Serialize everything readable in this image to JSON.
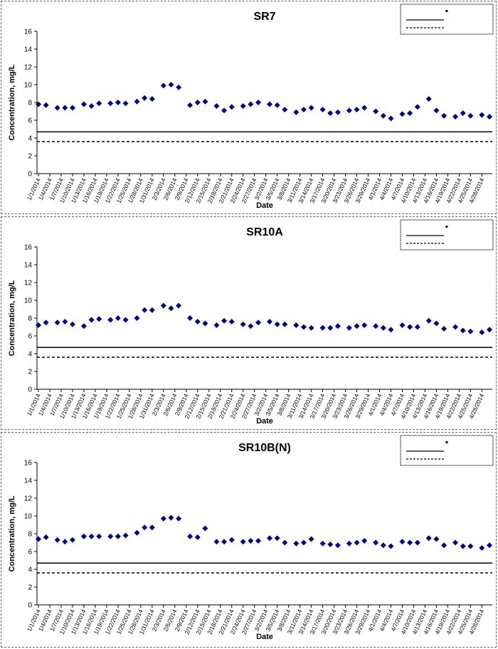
{
  "x_dates": [
    "1/1/2014",
    "1/4/2014",
    "1/7/2014",
    "1/10/2014",
    "1/13/2014",
    "1/16/2014",
    "1/19/2014",
    "1/22/2014",
    "1/25/2014",
    "1/28/2014",
    "1/31/2014",
    "2/3/2014",
    "2/6/2014",
    "2/9/2014",
    "2/12/2014",
    "2/15/2014",
    "2/18/2014",
    "2/21/2014",
    "2/24/2014",
    "2/27/2014",
    "3/2/2014",
    "3/5/2014",
    "3/8/2014",
    "3/11/2014",
    "3/14/2014",
    "3/17/2014",
    "3/20/2014",
    "3/23/2014",
    "3/26/2014",
    "3/29/2014",
    "4/1/2014",
    "4/4/2014",
    "4/7/2014",
    "4/10/2014",
    "4/13/2014",
    "4/16/2014",
    "4/19/2014",
    "4/22/2014",
    "4/25/2014",
    "4/28/2014"
  ],
  "colors": {
    "marker": "#00008b",
    "line": "#000000",
    "frame": "#666666"
  },
  "chart_data": [
    {
      "type": "scatter",
      "title": "SR7",
      "xlabel": "Date",
      "ylabel": "Concentration, mg/L",
      "ylim": [
        0,
        16
      ],
      "yticks": [
        0,
        2,
        4,
        6,
        8,
        10,
        12,
        14,
        16
      ],
      "grid": false,
      "legend_position": "top-right",
      "xtick_labels": [
        "1/1/2014",
        "1/4/2014",
        "1/7/2014",
        "1/10/2014",
        "1/13/2014",
        "1/16/2014",
        "1/19/2014",
        "1/22/2014",
        "1/25/2014",
        "1/28/2014",
        "1/31/2014",
        "2/3/2014",
        "2/6/2014",
        "2/9/2014",
        "2/12/2014",
        "2/15/2014",
        "2/18/2014",
        "2/21/2014",
        "2/24/2014",
        "2/27/2014",
        "3/2/2014",
        "3/5/2014",
        "3/8/2014",
        "3/11/2014",
        "3/14/2014",
        "3/17/2014",
        "3/20/2014",
        "3/23/2014",
        "3/26/2014",
        "3/29/2014",
        "4/1/2014",
        "4/4/2014",
        "4/7/2014",
        "4/10/2014",
        "4/13/2014",
        "4/16/2014",
        "4/19/2014",
        "4/22/2014",
        "4/25/2014",
        "4/28/2014"
      ],
      "series": [
        {
          "x": [
            "1/1/2014",
            "1/3/2014",
            "1/6/2014",
            "1/8/2014",
            "1/10/2014",
            "1/13/2014",
            "1/15/2014",
            "1/17/2014",
            "1/20/2014",
            "1/22/2014",
            "1/24/2014",
            "1/27/2014",
            "1/29/2014",
            "1/31/2014",
            "2/3/2014",
            "2/5/2014",
            "2/7/2014",
            "2/10/2014",
            "2/12/2014",
            "2/14/2014",
            "2/17/2014",
            "2/19/2014",
            "2/21/2014",
            "2/24/2014",
            "2/26/2014",
            "2/28/2014",
            "3/3/2014",
            "3/5/2014",
            "3/7/2014",
            "3/10/2014",
            "3/12/2014",
            "3/14/2014",
            "3/17/2014",
            "3/19/2014",
            "3/21/2014",
            "3/24/2014",
            "3/26/2014",
            "3/28/2014",
            "3/31/2014",
            "4/2/2014",
            "4/4/2014",
            "4/7/2014",
            "4/9/2014",
            "4/11/2014",
            "4/14/2014",
            "4/16/2014",
            "4/18/2014",
            "4/21/2014",
            "4/23/2014",
            "4/25/2014",
            "4/28/2014",
            "4/30/2014"
          ],
          "y": [
            7.8,
            7.7,
            7.4,
            7.4,
            7.4,
            7.8,
            7.6,
            7.9,
            7.9,
            8.0,
            7.9,
            8.1,
            8.5,
            8.4,
            9.9,
            10.0,
            9.7,
            7.7,
            8.0,
            8.1,
            7.6,
            7.1,
            7.5,
            7.6,
            7.8,
            8.0,
            7.8,
            7.7,
            7.2,
            6.9,
            7.2,
            7.4,
            7.2,
            6.8,
            6.9,
            7.1,
            7.2,
            7.4,
            7.0,
            6.5,
            6.2,
            6.7,
            6.8,
            7.5,
            8.4,
            7.1,
            6.5,
            6.4,
            6.8,
            6.5,
            6.6,
            6.4
          ]
        },
        {
          "type": "line",
          "y": 4.7
        },
        {
          "type": "line",
          "y": 3.6
        }
      ]
    },
    {
      "type": "scatter",
      "title": "SR10A",
      "xlabel": "Date",
      "ylabel": "Concentration, mg/L",
      "ylim": [
        0,
        16
      ],
      "yticks": [
        0,
        2,
        4,
        6,
        8,
        10,
        12,
        14,
        16
      ],
      "grid": false,
      "legend_position": "top-right",
      "xtick_labels": [
        "1/1/2014",
        "1/4/2014",
        "1/7/2014",
        "1/10/2014",
        "1/13/2014",
        "1/16/2014",
        "1/19/2014",
        "1/22/2014",
        "1/25/2014",
        "1/28/2014",
        "1/31/2014",
        "2/3/2014",
        "2/6/2014",
        "2/9/2014",
        "2/12/2014",
        "2/15/2014",
        "2/18/2014",
        "2/21/2014",
        "2/24/2014",
        "2/27/2014",
        "3/2/2014",
        "3/5/2014",
        "3/8/2014",
        "3/11/2014",
        "3/14/2014",
        "3/17/2014",
        "3/20/2014",
        "3/23/2014",
        "3/26/2014",
        "3/29/2014",
        "4/1/2014",
        "4/4/2014",
        "4/7/2014",
        "4/10/2014",
        "4/13/2014",
        "4/16/2014",
        "4/19/2014",
        "4/22/2014",
        "4/25/2014",
        "4/28/2014"
      ],
      "series": [
        {
          "x": [
            "1/1/2014",
            "1/3/2014",
            "1/6/2014",
            "1/8/2014",
            "1/10/2014",
            "1/13/2014",
            "1/15/2014",
            "1/17/2014",
            "1/20/2014",
            "1/22/2014",
            "1/24/2014",
            "1/27/2014",
            "1/29/2014",
            "1/31/2014",
            "2/3/2014",
            "2/5/2014",
            "2/7/2014",
            "2/10/2014",
            "2/12/2014",
            "2/14/2014",
            "2/17/2014",
            "2/19/2014",
            "2/21/2014",
            "2/24/2014",
            "2/26/2014",
            "2/28/2014",
            "3/3/2014",
            "3/5/2014",
            "3/7/2014",
            "3/10/2014",
            "3/12/2014",
            "3/14/2014",
            "3/17/2014",
            "3/19/2014",
            "3/21/2014",
            "3/24/2014",
            "3/26/2014",
            "3/28/2014",
            "3/31/2014",
            "4/2/2014",
            "4/4/2014",
            "4/7/2014",
            "4/9/2014",
            "4/11/2014",
            "4/14/2014",
            "4/16/2014",
            "4/18/2014",
            "4/21/2014",
            "4/23/2014",
            "4/25/2014",
            "4/28/2014",
            "4/30/2014"
          ],
          "y": [
            7.2,
            7.5,
            7.5,
            7.6,
            7.3,
            7.1,
            7.8,
            7.9,
            7.8,
            8.0,
            7.8,
            8.0,
            8.9,
            8.9,
            9.4,
            9.1,
            9.4,
            8.0,
            7.6,
            7.4,
            7.2,
            7.7,
            7.6,
            7.3,
            7.1,
            7.5,
            7.6,
            7.3,
            7.3,
            7.2,
            7.0,
            6.9,
            6.9,
            6.9,
            7.1,
            6.9,
            7.1,
            7.2,
            7.1,
            6.9,
            6.7,
            7.2,
            7.0,
            7.0,
            7.7,
            7.4,
            6.8,
            7.0,
            6.6,
            6.5,
            6.4,
            6.7
          ]
        },
        {
          "type": "line",
          "y": 4.7
        },
        {
          "type": "line",
          "y": 3.6
        }
      ]
    },
    {
      "type": "scatter",
      "title": "SR10B(N)",
      "xlabel": "Date",
      "ylabel": "Concentration, mg/L",
      "ylim": [
        0,
        16
      ],
      "yticks": [
        0,
        2,
        4,
        6,
        8,
        10,
        12,
        14,
        16
      ],
      "grid": false,
      "legend_position": "top-right",
      "xtick_labels": [
        "1/1/2014",
        "1/4/2014",
        "1/7/2014",
        "1/10/2014",
        "1/13/2014",
        "1/16/2014",
        "1/19/2014",
        "1/22/2014",
        "1/25/2014",
        "1/28/2014",
        "1/31/2014",
        "2/3/2014",
        "2/6/2014",
        "2/9/2014",
        "2/12/2014",
        "2/15/2014",
        "2/18/2014",
        "2/21/2014",
        "2/24/2014",
        "2/27/2014",
        "3/2/2014",
        "3/5/2014",
        "3/8/2014",
        "3/11/2014",
        "3/14/2014",
        "3/17/2014",
        "3/20/2014",
        "3/23/2014",
        "3/26/2014",
        "3/29/2014",
        "4/1/2014",
        "4/4/2014",
        "4/7/2014",
        "4/10/2014",
        "4/13/2014",
        "4/16/2014",
        "4/19/2014",
        "4/22/2014",
        "4/25/2014",
        "4/28/2014"
      ],
      "series": [
        {
          "x": [
            "1/1/2014",
            "1/3/2014",
            "1/6/2014",
            "1/8/2014",
            "1/10/2014",
            "1/13/2014",
            "1/15/2014",
            "1/17/2014",
            "1/20/2014",
            "1/22/2014",
            "1/24/2014",
            "1/27/2014",
            "1/29/2014",
            "1/31/2014",
            "2/3/2014",
            "2/5/2014",
            "2/7/2014",
            "2/10/2014",
            "2/12/2014",
            "2/14/2014",
            "2/17/2014",
            "2/19/2014",
            "2/21/2014",
            "2/24/2014",
            "2/26/2014",
            "2/28/2014",
            "3/3/2014",
            "3/5/2014",
            "3/7/2014",
            "3/10/2014",
            "3/12/2014",
            "3/14/2014",
            "3/17/2014",
            "3/19/2014",
            "3/21/2014",
            "3/24/2014",
            "3/26/2014",
            "3/28/2014",
            "3/31/2014",
            "4/2/2014",
            "4/4/2014",
            "4/7/2014",
            "4/9/2014",
            "4/11/2014",
            "4/14/2014",
            "4/16/2014",
            "4/18/2014",
            "4/21/2014",
            "4/23/2014",
            "4/25/2014",
            "4/28/2014",
            "4/30/2014"
          ],
          "y": [
            7.4,
            7.6,
            7.3,
            7.1,
            7.3,
            7.7,
            7.7,
            7.7,
            7.7,
            7.7,
            7.8,
            8.1,
            8.7,
            8.7,
            9.7,
            9.8,
            9.7,
            7.7,
            7.6,
            8.6,
            7.1,
            7.1,
            7.3,
            7.1,
            7.2,
            7.2,
            7.5,
            7.5,
            7.0,
            6.9,
            7.0,
            7.4,
            6.9,
            6.8,
            6.7,
            6.9,
            7.0,
            7.2,
            7.0,
            6.7,
            6.6,
            7.1,
            7.0,
            7.0,
            7.5,
            7.4,
            6.7,
            7.0,
            6.6,
            6.6,
            6.4,
            6.7
          ]
        },
        {
          "type": "line",
          "y": 4.7
        },
        {
          "type": "line",
          "y": 3.6
        }
      ]
    }
  ]
}
